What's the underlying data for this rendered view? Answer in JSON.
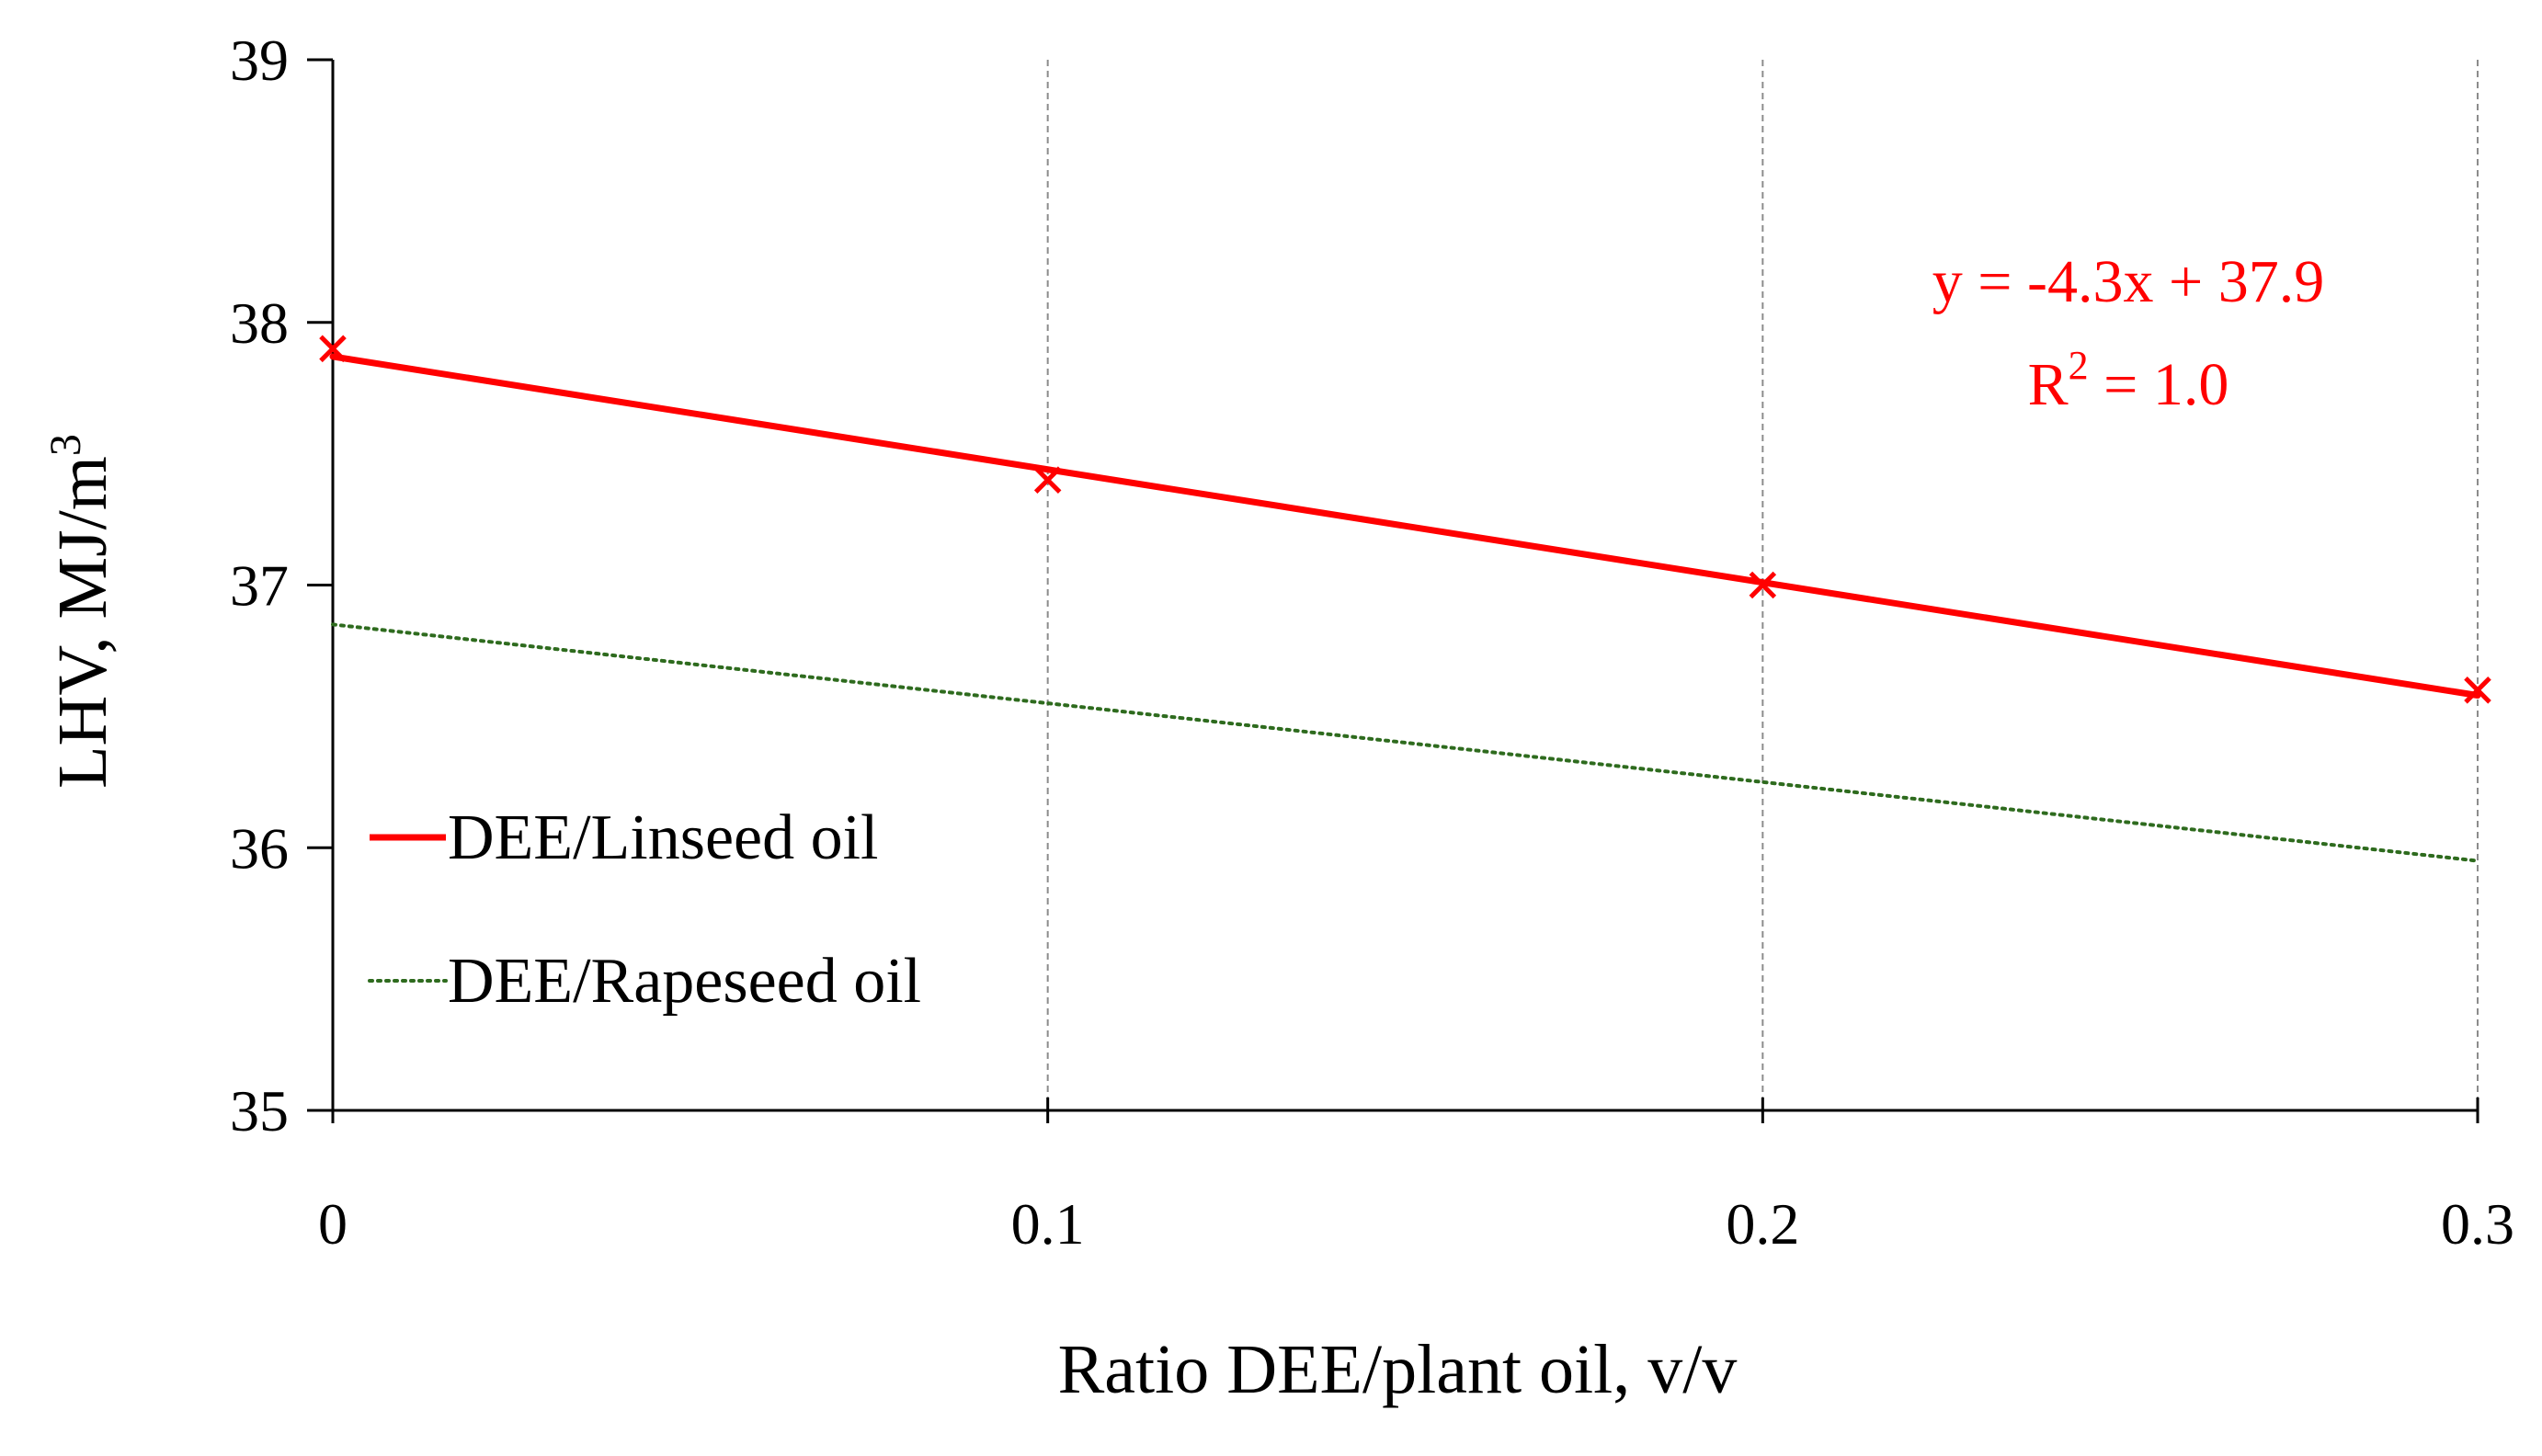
{
  "chart_data": {
    "type": "line",
    "title": "",
    "xlabel": "Ratio DEE/plant oil, v/v",
    "ylabel": "LHV,  MJ/m",
    "ylabel_sup": "3",
    "xlim": [
      0,
      0.3
    ],
    "ylim": [
      35,
      39
    ],
    "x_ticks": [
      "0",
      "0.1",
      "0.2",
      "0.3"
    ],
    "x_tick_values": [
      0,
      0.1,
      0.2,
      0.3
    ],
    "y_ticks": [
      "35",
      "36",
      "37",
      "38",
      "39"
    ],
    "y_tick_values": [
      35,
      36,
      37,
      38,
      39
    ],
    "grid": "vertical dashed",
    "legend_position": "center-left",
    "series": [
      {
        "name": "DEE/Linseed oil",
        "color": "#ff0000",
        "style": "solid",
        "marker": "x",
        "x": [
          0,
          0.1,
          0.2,
          0.3
        ],
        "y": [
          37.9,
          37.4,
          37.0,
          36.6
        ],
        "trendline": {
          "slope": -4.3,
          "intercept": 37.87,
          "x_range": [
            0,
            0.3
          ]
        }
      },
      {
        "name": "DEE/Rapeseed oil",
        "color": "#2e6b1e",
        "style": "dotted",
        "marker": "none",
        "x": [
          0,
          0.1,
          0.2,
          0.3
        ],
        "y": [
          36.85,
          36.55,
          36.25,
          35.95
        ]
      }
    ],
    "annotations": {
      "equation": "y = -4.3x + 37.9",
      "r2_label": "R",
      "r2_sup": "2",
      "r2_value": " = 1.0",
      "color": "#ff0000"
    }
  }
}
